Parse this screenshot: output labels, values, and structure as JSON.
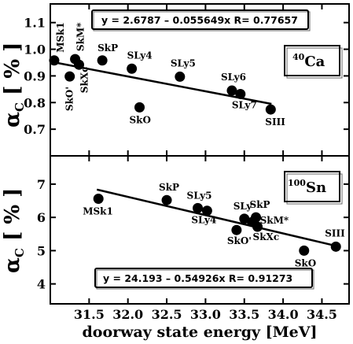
{
  "chart_data": [
    {
      "type": "scatter",
      "nucleus": {
        "sup": "40",
        "name": "Ca"
      },
      "fit_label": "y = 2.6787 – 0.055649x   R= 0.77657",
      "fit": {
        "intercept": 2.6787,
        "slope": -0.055649,
        "x_range": [
          31.0,
          33.85
        ]
      },
      "ylabel_main": "α",
      "ylabel_sub": "C",
      "ylabel_unit": " [ % ]",
      "xlim": [
        31.0,
        34.85
      ],
      "ylim": [
        0.6,
        1.17
      ],
      "y_ticks": [
        "0.7",
        "0.8",
        "0.9",
        "1.0",
        "1.1"
      ],
      "points": [
        {
          "label": "MSk1",
          "x": 31.05,
          "y": 0.958
        },
        {
          "label": "SkO'",
          "x": 31.25,
          "y": 0.898
        },
        {
          "label": "SkM*",
          "x": 31.32,
          "y": 0.963
        },
        {
          "label": "SkXc",
          "x": 31.37,
          "y": 0.942
        },
        {
          "label": "SkP",
          "x": 31.67,
          "y": 0.958
        },
        {
          "label": "SLy4",
          "x": 32.05,
          "y": 0.927
        },
        {
          "label": "SkO",
          "x": 32.15,
          "y": 0.782
        },
        {
          "label": "SLy5",
          "x": 32.67,
          "y": 0.897
        },
        {
          "label": "SLy6",
          "x": 33.34,
          "y": 0.845
        },
        {
          "label": "SLy7",
          "x": 33.45,
          "y": 0.832
        },
        {
          "label": "SIII",
          "x": 33.84,
          "y": 0.774
        }
      ]
    },
    {
      "type": "scatter",
      "nucleus": {
        "sup": "100",
        "name": "Sn"
      },
      "fit_label": "y = 24.193 – 0.54926x   R= 0.91273",
      "fit": {
        "intercept": 24.193,
        "slope": -0.54926,
        "x_range": [
          31.6,
          34.68
        ]
      },
      "ylabel_main": "α",
      "ylabel_sub": "C",
      "ylabel_unit": " [ % ]",
      "xlim": [
        31.0,
        34.85
      ],
      "ylim": [
        3.4,
        7.85
      ],
      "y_ticks": [
        "4",
        "5",
        "6",
        "7"
      ],
      "x_ticks": [
        "31.5",
        "32.0",
        "32.5",
        "33.0",
        "33.5",
        "34.0",
        "34.5"
      ],
      "xlabel": "doorway state energy [MeV]",
      "points": [
        {
          "label": "MSk1",
          "x": 31.62,
          "y": 6.56
        },
        {
          "label": "SkP",
          "x": 32.5,
          "y": 6.52
        },
        {
          "label": "SLy5",
          "x": 32.9,
          "y": 6.28
        },
        {
          "label": "SLy4",
          "x": 33.02,
          "y": 6.2
        },
        {
          "label": "SkO'",
          "x": 33.4,
          "y": 5.62
        },
        {
          "label": "SLy",
          "x": 33.5,
          "y": 5.96
        },
        {
          "label": "SkP",
          "x": 33.65,
          "y": 6.0
        },
        {
          "label": "SkM*",
          "x": 33.6,
          "y": 5.86
        },
        {
          "label": "SkXc",
          "x": 33.67,
          "y": 5.72
        },
        {
          "label": "SkO",
          "x": 34.27,
          "y": 5.0
        },
        {
          "label": "SIII",
          "x": 34.68,
          "y": 5.12
        }
      ]
    }
  ]
}
